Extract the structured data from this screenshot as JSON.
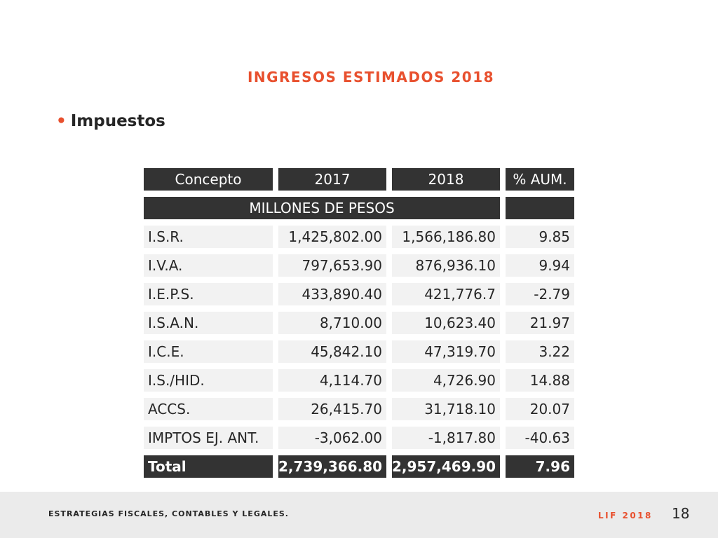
{
  "slide": {
    "title": "INGRESOS ESTIMADOS 2018",
    "bullet_symbol": "•",
    "bullet": "Impuestos"
  },
  "table": {
    "headers": [
      "Concepto",
      "2017",
      "2018",
      "% AUM."
    ],
    "unit_label": "MILLONES DE PESOS",
    "rows": [
      [
        "I.S.R.",
        "1,425,802.00",
        "1,566,186.80",
        "9.85"
      ],
      [
        "I.V.A.",
        "797,653.90",
        "876,936.10",
        "9.94"
      ],
      [
        "I.E.P.S.",
        "433,890.40",
        "421,776.7",
        "-2.79"
      ],
      [
        "I.S.A.N.",
        "8,710.00",
        "10,623.40",
        "21.97"
      ],
      [
        "I.C.E.",
        "45,842.10",
        "47,319.70",
        "3.22"
      ],
      [
        "I.S./HID.",
        "4,114.70",
        "4,726.90",
        "14.88"
      ],
      [
        "ACCS.",
        "26,415.70",
        "31,718.10",
        "20.07"
      ],
      [
        "IMPTOS EJ. ANT.",
        "-3,062.00",
        "-1,817.80",
        "-40.63"
      ]
    ],
    "total": [
      "Total",
      "2,739,366.80",
      "2,957,469.90",
      "7.96"
    ]
  },
  "footer": {
    "left_text": "ESTRATEGIAS FISCALES, CONTABLES Y LEGALES.",
    "right_text": "LIF 2018",
    "page_number": "18"
  },
  "colors": {
    "accent": "#e8502e",
    "header_bg": "#333333",
    "row_bg": "#f2f2f2",
    "footer_bg": "#ebebeb"
  }
}
